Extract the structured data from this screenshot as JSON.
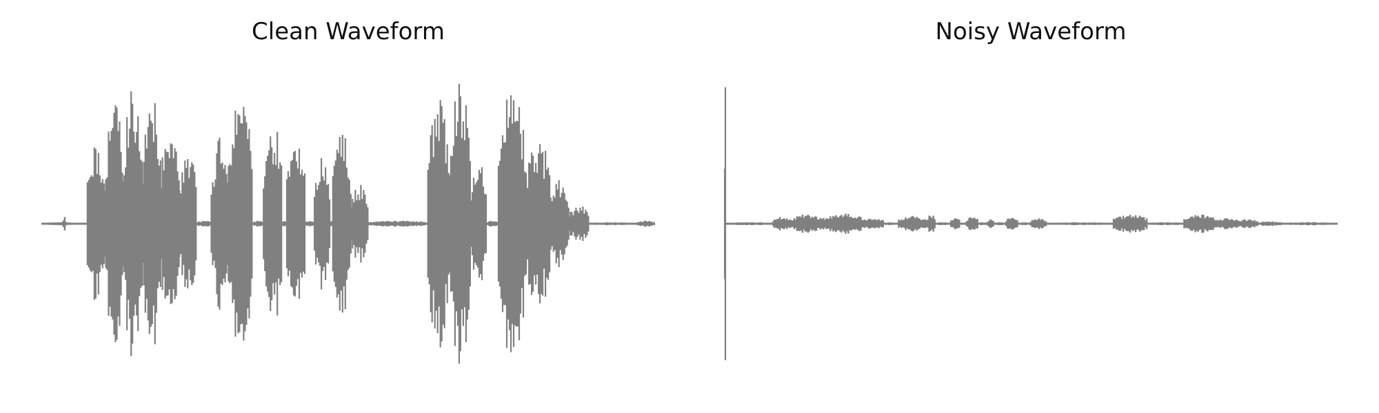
{
  "colors": {
    "waveform": "#808080",
    "background": "#ffffff",
    "title": "#111111"
  },
  "chart_data": [
    {
      "type": "line",
      "title": "Clean Waveform",
      "xlabel": "",
      "ylabel": "",
      "axes_visible": false,
      "grid": false,
      "x_range": [
        0,
        1
      ],
      "ylim": [
        -1,
        1
      ],
      "series": [
        {
          "segments": [
            {
              "x": [
                0.0,
                0.075
              ],
              "amplitude": 0.01
            },
            {
              "x": [
                0.036,
                0.039
              ],
              "amplitude": 0.06
            },
            {
              "x": [
                0.075,
                0.105
              ],
              "amplitude": 0.5
            },
            {
              "x": [
                0.105,
                0.135
              ],
              "amplitude": 0.78
            },
            {
              "x": [
                0.135,
                0.165
              ],
              "amplitude": 0.92
            },
            {
              "x": [
                0.165,
                0.195
              ],
              "amplitude": 0.82
            },
            {
              "x": [
                0.195,
                0.225
              ],
              "amplitude": 0.7
            },
            {
              "x": [
                0.225,
                0.254
              ],
              "amplitude": 0.45
            },
            {
              "x": [
                0.254,
                0.277
              ],
              "amplitude": 0.02
            },
            {
              "x": [
                0.277,
                0.305
              ],
              "amplitude": 0.55
            },
            {
              "x": [
                0.305,
                0.345
              ],
              "amplitude": 0.86
            },
            {
              "x": [
                0.345,
                0.362
              ],
              "amplitude": 0.02
            },
            {
              "x": [
                0.362,
                0.392
              ],
              "amplitude": 0.68
            },
            {
              "x": [
                0.392,
                0.4
              ],
              "amplitude": 0.02
            },
            {
              "x": [
                0.4,
                0.43
              ],
              "amplitude": 0.55
            },
            {
              "x": [
                0.43,
                0.445
              ],
              "amplitude": 0.02
            },
            {
              "x": [
                0.445,
                0.47
              ],
              "amplitude": 0.45
            },
            {
              "x": [
                0.47,
                0.475
              ],
              "amplitude": 0.02
            },
            {
              "x": [
                0.475,
                0.505
              ],
              "amplitude": 0.58
            },
            {
              "x": [
                0.505,
                0.533
              ],
              "amplitude": 0.25
            },
            {
              "x": [
                0.533,
                0.63
              ],
              "amplitude": 0.02
            },
            {
              "x": [
                0.63,
                0.665
              ],
              "amplitude": 0.82
            },
            {
              "x": [
                0.665,
                0.7
              ],
              "amplitude": 0.98
            },
            {
              "x": [
                0.7,
                0.725
              ],
              "amplitude": 0.42
            },
            {
              "x": [
                0.725,
                0.745
              ],
              "amplitude": 0.02
            },
            {
              "x": [
                0.745,
                0.79
              ],
              "amplitude": 0.88
            },
            {
              "x": [
                0.79,
                0.83
              ],
              "amplitude": 0.58
            },
            {
              "x": [
                0.83,
                0.86
              ],
              "amplitude": 0.3
            },
            {
              "x": [
                0.86,
                0.893
              ],
              "amplitude": 0.12
            },
            {
              "x": [
                0.893,
                0.97
              ],
              "amplitude": 0.01
            },
            {
              "x": [
                0.97,
                1.0
              ],
              "amplitude": 0.02
            }
          ]
        }
      ]
    },
    {
      "type": "line",
      "title": "Noisy Waveform",
      "xlabel": "",
      "ylabel": "",
      "axes_visible": false,
      "grid": false,
      "x_range": [
        0,
        1
      ],
      "ylim": [
        -1,
        1
      ],
      "series": [
        {
          "segments": [
            {
              "x": [
                0.0,
                0.003
              ],
              "amplitude": 1.0
            },
            {
              "x": [
                0.003,
                0.08
              ],
              "amplitude": 0.01
            },
            {
              "x": [
                0.08,
                0.11
              ],
              "amplitude": 0.045
            },
            {
              "x": [
                0.11,
                0.16
              ],
              "amplitude": 0.06
            },
            {
              "x": [
                0.16,
                0.23
              ],
              "amplitude": 0.065
            },
            {
              "x": [
                0.23,
                0.26
              ],
              "amplitude": 0.04
            },
            {
              "x": [
                0.26,
                0.285
              ],
              "amplitude": 0.01
            },
            {
              "x": [
                0.285,
                0.33
              ],
              "amplitude": 0.05
            },
            {
              "x": [
                0.33,
                0.345
              ],
              "amplitude": 0.06
            },
            {
              "x": [
                0.345,
                0.37
              ],
              "amplitude": 0.01
            },
            {
              "x": [
                0.37,
                0.385
              ],
              "amplitude": 0.045
            },
            {
              "x": [
                0.385,
                0.395
              ],
              "amplitude": 0.01
            },
            {
              "x": [
                0.395,
                0.415
              ],
              "amplitude": 0.045
            },
            {
              "x": [
                0.415,
                0.43
              ],
              "amplitude": 0.01
            },
            {
              "x": [
                0.43,
                0.44
              ],
              "amplitude": 0.035
            },
            {
              "x": [
                0.44,
                0.46
              ],
              "amplitude": 0.01
            },
            {
              "x": [
                0.46,
                0.48
              ],
              "amplitude": 0.045
            },
            {
              "x": [
                0.48,
                0.5
              ],
              "amplitude": 0.01
            },
            {
              "x": [
                0.5,
                0.525
              ],
              "amplitude": 0.035
            },
            {
              "x": [
                0.525,
                0.635
              ],
              "amplitude": 0.01
            },
            {
              "x": [
                0.635,
                0.69
              ],
              "amplitude": 0.06
            },
            {
              "x": [
                0.69,
                0.75
              ],
              "amplitude": 0.01
            },
            {
              "x": [
                0.75,
                0.805
              ],
              "amplitude": 0.06
            },
            {
              "x": [
                0.805,
                0.84
              ],
              "amplitude": 0.04
            },
            {
              "x": [
                0.84,
                0.87
              ],
              "amplitude": 0.03
            },
            {
              "x": [
                0.87,
                0.91
              ],
              "amplitude": 0.015
            },
            {
              "x": [
                0.91,
                1.0
              ],
              "amplitude": 0.01
            }
          ]
        }
      ]
    }
  ]
}
